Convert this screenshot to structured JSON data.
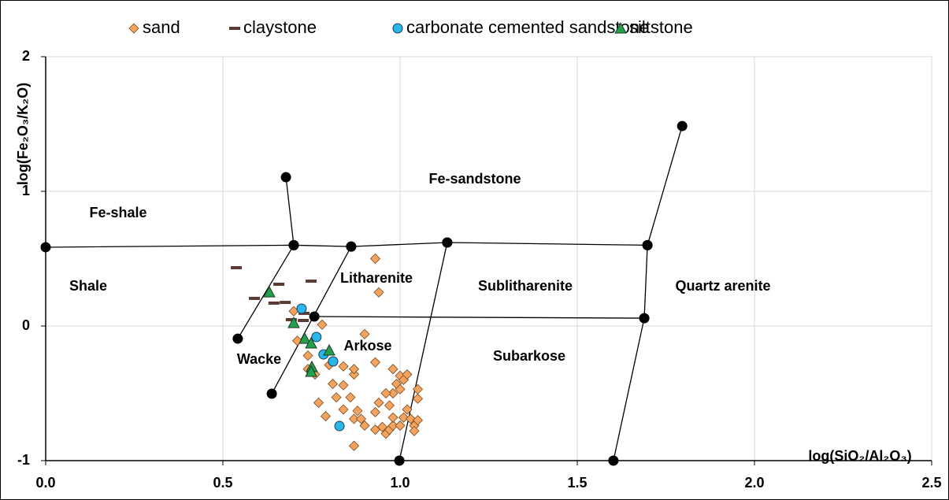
{
  "chart_data": {
    "type": "scatter",
    "x_label": "log(SiO₂/Al₂O₃)",
    "y_label": "log(Fe₂O₃/K₂O)",
    "xlim": [
      0,
      2.5
    ],
    "ylim": [
      -1,
      2
    ],
    "xticks": [
      {
        "value": 0,
        "label": "0.0"
      },
      0.5,
      {
        "value": 1,
        "label": "1.0"
      },
      1.5,
      {
        "value": 2,
        "label": "2.0"
      },
      2.5
    ],
    "yticks": [
      -1,
      0,
      1,
      2
    ],
    "grid": true,
    "legend": "top",
    "series": [
      {
        "name": "sand",
        "marker": "diamond",
        "color": "#f4a460",
        "x": [
          0.93,
          0.94,
          0.7,
          0.78,
          0.71,
          0.74,
          0.74,
          0.76,
          0.8,
          0.84,
          0.81,
          0.77,
          0.79,
          0.87,
          0.84,
          0.86,
          0.87,
          0.87,
          0.9,
          0.93,
          0.84,
          0.87,
          0.88,
          0.89,
          0.93,
          0.94,
          0.93,
          0.95,
          0.96,
          0.97,
          0.98,
          0.98,
          0.98,
          0.99,
          0.98,
          1.0,
          1.01,
          1.02,
          1.0,
          1.01,
          1.02,
          1.03,
          1.04,
          1.04,
          1.05,
          1.0,
          1.05,
          1.05,
          0.96,
          0.97,
          0.82,
          0.9
        ],
        "values": [
          0.5,
          0.25,
          0.11,
          0.01,
          -0.11,
          -0.22,
          -0.32,
          -0.36,
          -0.29,
          -0.3,
          -0.43,
          -0.57,
          -0.67,
          -0.89,
          -0.62,
          -0.53,
          -0.36,
          -0.32,
          -0.06,
          -0.27,
          -0.44,
          -0.69,
          -0.63,
          -0.69,
          -0.64,
          -0.57,
          -0.77,
          -0.75,
          -0.8,
          -0.77,
          -0.74,
          -0.68,
          -0.5,
          -0.43,
          -0.32,
          -0.37,
          -0.4,
          -0.36,
          -0.47,
          -0.68,
          -0.62,
          -0.69,
          -0.74,
          -0.78,
          -0.7,
          -0.74,
          -0.47,
          -0.54,
          -0.5,
          -0.59,
          -0.53,
          -0.74
        ]
      },
      {
        "name": "claystone",
        "marker": "dash",
        "color": "#5a3a34",
        "x": [
          0.538,
          0.589,
          0.644,
          0.676,
          0.658,
          0.749,
          0.693,
          0.727,
          0.729
        ],
        "values": [
          0.433,
          0.205,
          0.17,
          0.175,
          0.31,
          0.333,
          0.047,
          0.041,
          0.094
        ]
      },
      {
        "name": "carbonate cemented sandstone",
        "marker": "circle",
        "color": "#29b6e8",
        "x": [
          0.722,
          0.764,
          0.784,
          0.811,
          0.829
        ],
        "values": [
          0.129,
          -0.082,
          -0.211,
          -0.263,
          -0.743
        ]
      },
      {
        "name": "siltstone",
        "marker": "triangle",
        "color": "#22a04b",
        "x": [
          0.631,
          0.7,
          0.731,
          0.749,
          0.8,
          0.751,
          0.749
        ],
        "values": [
          0.251,
          0.023,
          -0.094,
          -0.129,
          -0.181,
          -0.304,
          -0.339
        ]
      }
    ],
    "boundaries": [
      {
        "x": [
          0,
          0.7,
          0.862,
          1.133,
          1.698
        ],
        "y": [
          0.585,
          0.6,
          0.59,
          0.62,
          0.6
        ]
      },
      {
        "x": [
          0.678,
          0.7,
          0.542
        ],
        "y": [
          1.105,
          0.6,
          -0.094
        ]
      },
      {
        "x": [
          0.862,
          0.638
        ],
        "y": [
          0.59,
          -0.503
        ]
      },
      {
        "x": [
          1.133,
          0.998
        ],
        "y": [
          0.62,
          -1
        ]
      },
      {
        "x": [
          1.796,
          1.698,
          1.689,
          1.602
        ],
        "y": [
          1.485,
          0.6,
          0.058,
          -1
        ]
      },
      {
        "x": [
          0.758,
          1.689
        ],
        "y": [
          0.07,
          0.058
        ]
      }
    ],
    "annotations": [
      "Fe-shale",
      "Fe-sandstone",
      "Shale",
      "Litharenite",
      "Sublitharenite",
      "Quartz arenite",
      "Arkose",
      "Subarkose",
      "Wacke"
    ]
  }
}
